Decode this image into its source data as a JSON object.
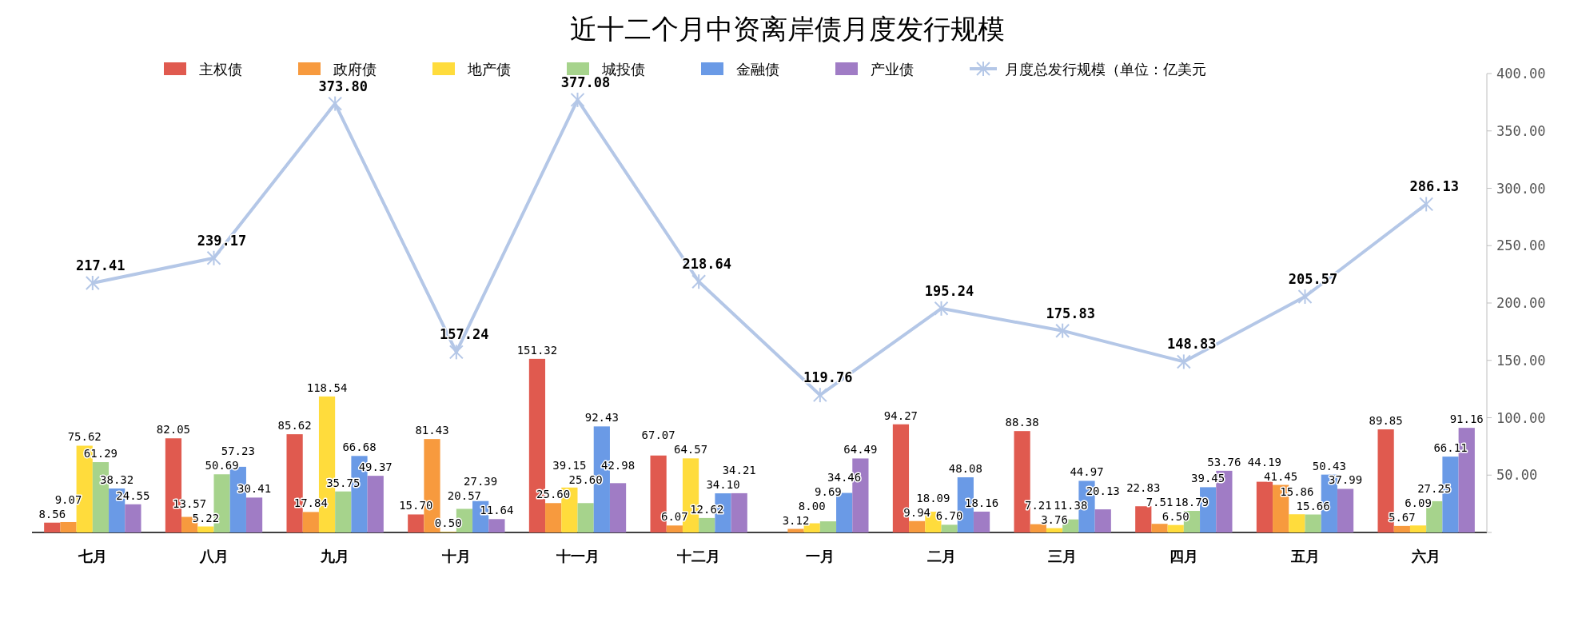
{
  "chart_data": {
    "type": "bar",
    "title": "近十二个月中资离岸债月度发行规模",
    "categories": [
      "七月",
      "八月",
      "九月",
      "十月",
      "十一月",
      "十二月",
      "一月",
      "二月",
      "三月",
      "四月",
      "五月",
      "六月"
    ],
    "series": [
      {
        "name": "主权债",
        "color": "#e05a4f",
        "values": [
          8.56,
          82.05,
          85.62,
          15.7,
          151.32,
          67.07,
          null,
          94.27,
          88.38,
          22.83,
          44.19,
          89.85
        ],
        "value_labels": [
          "8.56",
          "82.05",
          "85.62",
          "15.70",
          "151.32",
          "67.07",
          null,
          "94.27",
          "88.38",
          "22.83",
          "44.19",
          "89.85"
        ]
      },
      {
        "name": "政府债",
        "color": "#f79a3e",
        "values": [
          9.07,
          13.57,
          17.84,
          81.43,
          25.6,
          6.07,
          3.12,
          9.94,
          7.21,
          7.51,
          41.45,
          5.67
        ],
        "value_labels": [
          "9.07",
          "13.57",
          "17.84",
          "81.43",
          "25.60",
          "6.07",
          "3.12",
          "9.94",
          "7.21",
          "7.51",
          "41.45",
          "5.67"
        ]
      },
      {
        "name": "地产债",
        "color": "#ffdc3c",
        "values": [
          75.62,
          5.22,
          118.54,
          0.5,
          39.15,
          64.57,
          8.0,
          18.09,
          3.76,
          6.5,
          15.86,
          6.09
        ],
        "value_labels": [
          "75.62",
          "5.22",
          "118.54",
          "0.50",
          "39.15",
          "64.57",
          "8.00",
          "18.09",
          "3.76",
          "6.50",
          "15.86",
          "6.09"
        ]
      },
      {
        "name": "城投债",
        "color": "#a6d38c",
        "values": [
          61.29,
          50.69,
          35.75,
          20.57,
          25.6,
          12.62,
          9.69,
          6.7,
          11.38,
          18.79,
          15.66,
          27.25
        ],
        "value_labels": [
          "61.29",
          "50.69",
          "35.75",
          "20.57",
          "25.60",
          "12.62",
          "9.69",
          "6.70",
          "11.38",
          "18.79",
          "15.66",
          "27.25"
        ]
      },
      {
        "name": "金融债",
        "color": "#6a9ae6",
        "values": [
          38.32,
          57.23,
          66.68,
          27.39,
          92.43,
          34.1,
          34.46,
          48.08,
          44.97,
          39.45,
          50.43,
          66.11
        ],
        "value_labels": [
          "38.32",
          "57.23",
          "66.68",
          "27.39",
          "92.43",
          "34.10",
          "34.46",
          "48.08",
          "44.97",
          "39.45",
          "50.43",
          "66.11"
        ]
      },
      {
        "name": "产业债",
        "color": "#a07cc5",
        "values": [
          24.55,
          30.41,
          49.37,
          11.64,
          42.98,
          34.21,
          64.49,
          18.16,
          20.13,
          53.76,
          37.99,
          91.16
        ],
        "value_labels": [
          "24.55",
          "30.41",
          "49.37",
          "11.64",
          "42.98",
          "34.21",
          "64.49",
          "18.16",
          "20.13",
          "53.76",
          "37.99",
          "91.16"
        ]
      },
      {
        "name": "月度总发行规模（单位：亿美元",
        "type": "line",
        "color": "#b4c7e7",
        "marker": "cross",
        "values": [
          217.41,
          239.17,
          373.8,
          157.24,
          377.08,
          218.64,
          119.76,
          195.24,
          175.83,
          148.83,
          205.57,
          286.13
        ],
        "value_labels": [
          "217.41",
          "239.17",
          "373.80",
          "157.24",
          "377.08",
          "218.64",
          "119.76",
          "195.24",
          "175.83",
          "148.83",
          "205.57",
          "286.13"
        ]
      }
    ],
    "ylim": [
      0,
      400
    ],
    "yticks": [
      {
        "value": 0,
        "label": null
      },
      {
        "value": 50,
        "label": "50.00"
      },
      {
        "value": 100,
        "label": "100.00"
      },
      {
        "value": 150,
        "label": "150.00"
      },
      {
        "value": 200,
        "label": "200.00"
      },
      {
        "value": 250,
        "label": "250.00"
      },
      {
        "value": 300,
        "label": "300.00"
      },
      {
        "value": 350,
        "label": "350.00"
      },
      {
        "value": 400,
        "label": "400.00"
      }
    ],
    "legend": "top",
    "grid": false
  }
}
